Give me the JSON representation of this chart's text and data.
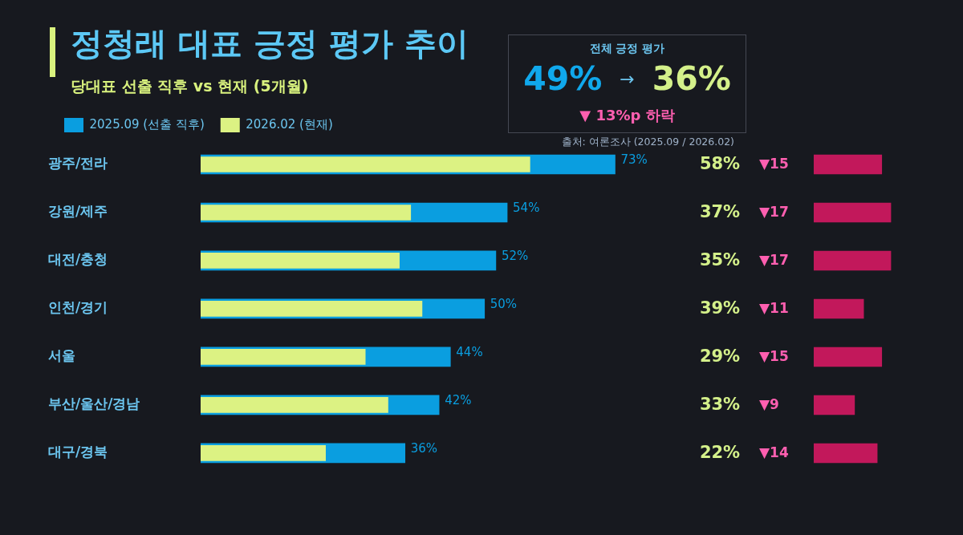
{
  "chart_data": [
    {
      "type": "bar",
      "title": "정청래 대표 긍정 평가 추이",
      "subtitle": "당대표 선출 직후 vs 현재 (5개월)",
      "orientation": "horizontal",
      "categories": [
        "광주/전라",
        "강원/제주",
        "대전/충청",
        "인천/경기",
        "서울",
        "부산/울산/경남",
        "대구/경북"
      ],
      "series": [
        {
          "name": "2025.09 (선출 직후)",
          "color": "#0a9ee0",
          "values": [
            73,
            54,
            52,
            50,
            44,
            42,
            36
          ],
          "value_labels": [
            "73%",
            "54%",
            "52%",
            "50%",
            "44%",
            "42%",
            "36%"
          ]
        },
        {
          "name": "2026.02 (현재)",
          "color": "#dcf283",
          "values": [
            58,
            37,
            35,
            39,
            29,
            33,
            22
          ],
          "value_labels": [
            "58%",
            "37%",
            "35%",
            "39%",
            "29%",
            "33%",
            "22%"
          ]
        }
      ],
      "legend": "top left",
      "tick_labels": "y",
      "annotations": [
        "출처: 여론조사 (2025.09 / 2026.02)"
      ]
    },
    {
      "type": "bar",
      "orientation": "horizontal",
      "categories": [
        null,
        null,
        null,
        null,
        null,
        null,
        null
      ],
      "values": [
        15,
        17,
        17,
        11,
        15,
        9,
        14
      ],
      "color": "#c2185b",
      "value_labels": [
        "▼15",
        "▼17",
        "▼17",
        "▼11",
        "▼15",
        "▼9",
        "▼14"
      ],
      "tick_labels": false
    },
    {
      "type": "other",
      "title": "전체 긍정 평가",
      "annotations": [
        "49%",
        "→",
        "36%",
        "▼ 13%p 하락"
      ]
    }
  ]
}
